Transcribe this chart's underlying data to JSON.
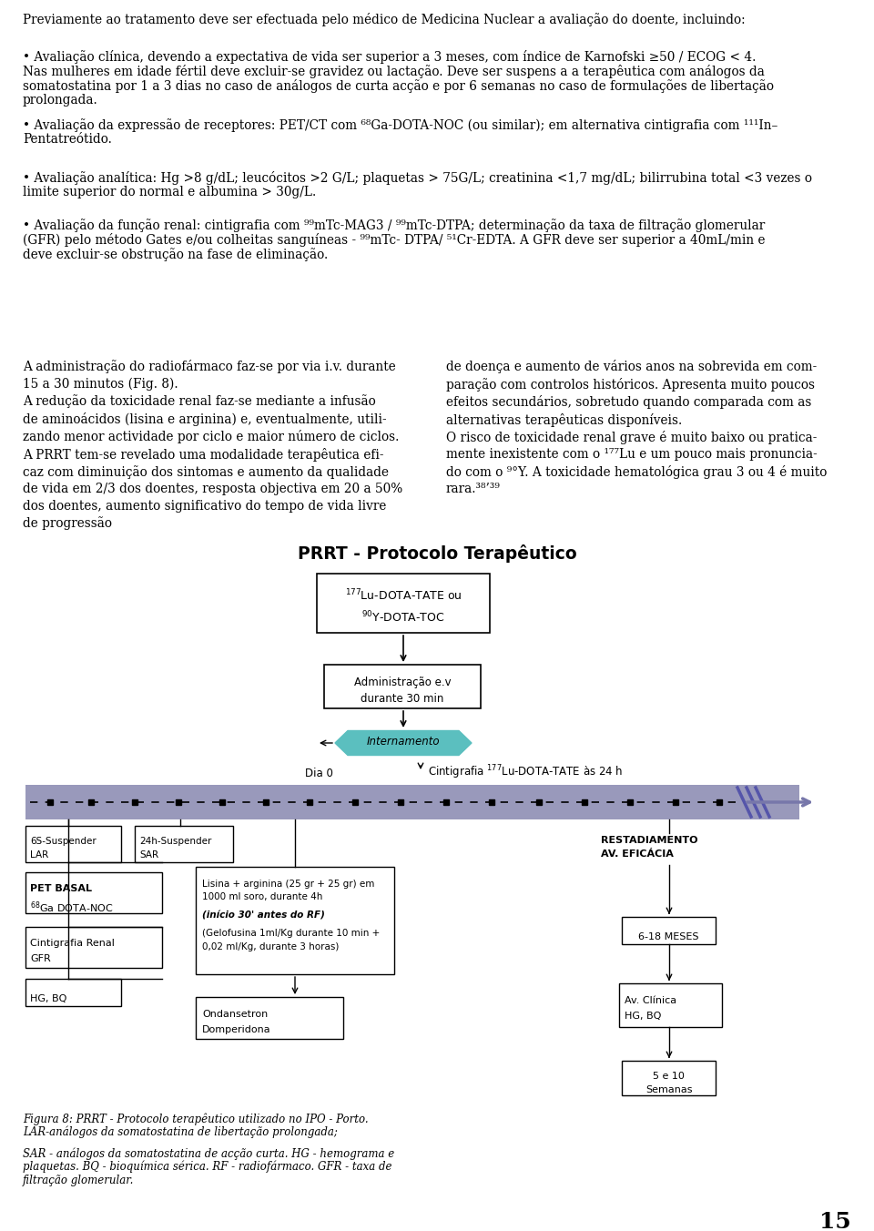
{
  "bg_color": "#ffffff",
  "para1": "Previamente ao tratamento deve ser efectuada pelo médico de Medicina Nuclear a avaliação do doente, incluindo:",
  "bullet1_l1": "• Avaliação clínica, devendo a expectativa de vida ser superior a 3 meses, com índice de Karnofski ≥50 / ECOG < 4.",
  "bullet1_l2": "Nas mulheres em idade fértil deve excluir-se gravidez ou lactação. Deve ser suspens a a terapêutica com análogos da",
  "bullet1_l3": "somatostatina por 1 a 3 dias no caso de análogos de curta acção e por 6 semanas no caso de formulações de libertação",
  "bullet1_l4": "prolongada.",
  "bullet2_l1": "• Avaliação da expressão de receptores: PET/CT com ⁶⁸Ga-DOTA-NOC (ou similar); em alternativa cintigrafia com ¹¹¹In–",
  "bullet2_l2": "Pentatreótido.",
  "bullet3_l1": "• Avaliação analítica: Hg >8 g/dL; leucócitos >2 G/L; plaquetas > 75G/L; creatinina <1,7 mg/dL; bilirrubina total <3 vezes o",
  "bullet3_l2": "limite superior do normal e albumina > 30g/L.",
  "bullet4_l1": "• Avaliação da função renal: cintigrafia com ⁹⁹mTc-MAG3 / ⁹⁹mTc-DTPA; determinação da taxa de filtração glomerular",
  "bullet4_l2": "(GFR) pelo método Gates e/ou colheitas sanguíneas - ⁹⁹mTc- DTPA/ ⁵¹Cr-EDTA. A GFR deve ser superior a 40mL/min e",
  "bullet4_l3": "deve excluir-se obstrução na fase de eliminação.",
  "col1_text": "A administração do radiofármaco faz-se por via i.v. durante\n15 a 30 minutos (Fig. 8).\nA redução da toxicidade renal faz-se mediante a infusão\nde aminoácidos (lisina e arginina) e, eventualmente, utili-\nzando menor actividade por ciclo e maior número de ciclos.\nA PRRT tem-se revelado uma modalidade terapêutica efi-\ncaz com diminuição dos sintomas e aumento da qualidade\nde vida em 2/3 dos doentes, resposta objectiva em 20 a 50%\ndos doentes, aumento significativo do tempo de vida livre\nde progressão",
  "col2_text": "de doença e aumento de vários anos na sobrevida em com-\nparação com controlos históricos. Apresenta muito poucos\nefeitos secundários, sobretudo quando comparada com as\nalternativas terapêuticas disponíveis.\nO risco de toxicidade renal grave é muito baixo ou pratica-\nmente inexistente com o ¹⁷⁷Lu e um pouco mais pronuncia-\ndo com o ⁹°Y. A toxicidade hematológica grau 3 ou 4 é muito\nrara.³⁸’³⁹",
  "diag_title": "PRRT - Protocolo Terapêutico",
  "cap1": "Figura 8: PRRT - Protocolo terapêutico utilizado no IPO - Porto.",
  "cap2": "LAR-análogos da somatostatina de libertação prolongada;",
  "cap3": "SAR - análogos da somatostatina de acção curta. HG - hemograma e",
  "cap4": "plaquetas. BQ - bioquímica sérica. RF - radiofármaco. GFR - taxa de",
  "cap5": "filtração glomerular.",
  "page_num": "15",
  "teal": "#5bbfbf",
  "bar_fill": "#9999bb",
  "arrow_fill": "#7777aa"
}
